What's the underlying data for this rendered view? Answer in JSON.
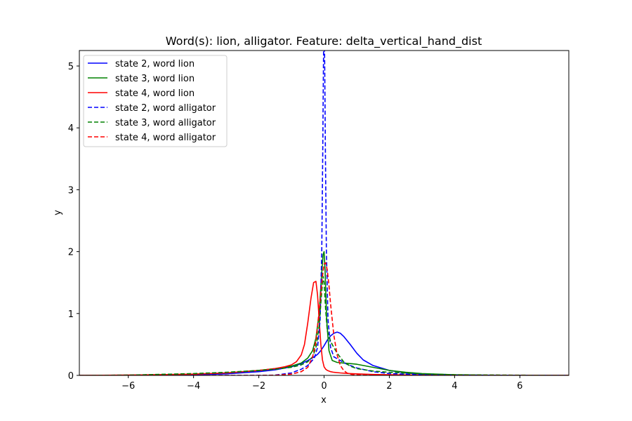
{
  "chart_data": {
    "type": "line",
    "title": "Word(s): lion, alligator. Feature: delta_vertical_hand_dist",
    "xlabel": "x",
    "ylabel": "y",
    "xlim": [
      -7.5,
      7.5
    ],
    "ylim": [
      0,
      5.25
    ],
    "xticks": [
      -6,
      -4,
      -2,
      0,
      2,
      4,
      6
    ],
    "yticks": [
      0,
      1,
      2,
      3,
      4,
      5
    ],
    "grid": false,
    "legend_position": "top-left",
    "series": [
      {
        "name": "state 2, word lion",
        "color": "#0000ff",
        "style": "solid",
        "x": [
          -7.5,
          -6,
          -4,
          -3,
          -2,
          -1.5,
          -1,
          -0.7,
          -0.5,
          -0.3,
          -0.2,
          -0.1,
          0,
          0.1,
          0.2,
          0.3,
          0.4,
          0.5,
          0.6,
          0.8,
          1,
          1.2,
          1.5,
          2,
          2.5,
          3,
          4,
          5,
          6,
          7.5
        ],
        "y": [
          0,
          0.002,
          0.01,
          0.025,
          0.06,
          0.09,
          0.14,
          0.19,
          0.24,
          0.3,
          0.34,
          0.4,
          0.48,
          0.57,
          0.64,
          0.68,
          0.7,
          0.68,
          0.63,
          0.5,
          0.36,
          0.25,
          0.16,
          0.08,
          0.04,
          0.02,
          0.006,
          0.002,
          0.001,
          0
        ]
      },
      {
        "name": "state 3, word lion",
        "color": "#008000",
        "style": "solid",
        "x": [
          -7.5,
          -6,
          -4,
          -3,
          -2,
          -1.5,
          -1,
          -0.7,
          -0.5,
          -0.35,
          -0.25,
          -0.15,
          -0.08,
          -0.03,
          0,
          0.03,
          0.08,
          0.15,
          0.25,
          0.4,
          0.6,
          0.8,
          1,
          1.2,
          1.5,
          2,
          2.5,
          3,
          4,
          5,
          6,
          7.5
        ],
        "y": [
          0,
          0.003,
          0.02,
          0.04,
          0.08,
          0.11,
          0.15,
          0.2,
          0.28,
          0.4,
          0.6,
          1.0,
          1.6,
          1.95,
          2.0,
          1.7,
          0.9,
          0.4,
          0.24,
          0.21,
          0.2,
          0.19,
          0.18,
          0.16,
          0.13,
          0.08,
          0.05,
          0.03,
          0.01,
          0.003,
          0.001,
          0
        ]
      },
      {
        "name": "state 4, word lion",
        "color": "#ff0000",
        "style": "solid",
        "x": [
          -7.5,
          -6,
          -4,
          -3,
          -2,
          -1.5,
          -1.2,
          -1,
          -0.85,
          -0.7,
          -0.6,
          -0.5,
          -0.4,
          -0.32,
          -0.25,
          -0.2,
          -0.15,
          -0.1,
          -0.05,
          0,
          0.05,
          0.1,
          0.2,
          0.3,
          0.5,
          0.8,
          1,
          1.5,
          2,
          3,
          4,
          5,
          6,
          7.5
        ],
        "y": [
          0,
          0.004,
          0.02,
          0.04,
          0.08,
          0.11,
          0.14,
          0.17,
          0.22,
          0.33,
          0.5,
          0.85,
          1.25,
          1.5,
          1.52,
          1.3,
          0.9,
          0.5,
          0.25,
          0.14,
          0.1,
          0.08,
          0.06,
          0.05,
          0.04,
          0.03,
          0.025,
          0.015,
          0.01,
          0.005,
          0.002,
          0.001,
          0,
          0
        ]
      },
      {
        "name": "state 2, word alligator",
        "color": "#0000ff",
        "style": "dashed",
        "x": [
          -7.5,
          -4,
          -2,
          -1.5,
          -1,
          -0.7,
          -0.5,
          -0.3,
          -0.2,
          -0.12,
          -0.07,
          -0.04,
          -0.02,
          0,
          0.02,
          0.04,
          0.07,
          0.12,
          0.2,
          0.3,
          0.5,
          0.7,
          1,
          1.5,
          2,
          3,
          4,
          6,
          7.5
        ],
        "y": [
          0,
          0,
          0,
          0.005,
          0.04,
          0.1,
          0.16,
          0.28,
          0.45,
          0.9,
          2.0,
          3.6,
          5.0,
          6.0,
          5.0,
          3.6,
          2.0,
          0.9,
          0.45,
          0.3,
          0.24,
          0.18,
          0.12,
          0.06,
          0.03,
          0.01,
          0.003,
          0,
          0
        ]
      },
      {
        "name": "state 3, word alligator",
        "color": "#008000",
        "style": "dashed",
        "x": [
          -7.5,
          -6,
          -4,
          -3,
          -2,
          -1.5,
          -1,
          -0.7,
          -0.5,
          -0.35,
          -0.25,
          -0.15,
          -0.08,
          -0.03,
          0,
          0.05,
          0.1,
          0.2,
          0.3,
          0.4,
          0.6,
          0.8,
          1,
          1.5,
          2,
          3,
          4,
          6,
          7.5
        ],
        "y": [
          0,
          0.005,
          0.03,
          0.05,
          0.08,
          0.1,
          0.13,
          0.17,
          0.22,
          0.3,
          0.45,
          0.8,
          1.3,
          1.6,
          1.5,
          1.05,
          0.72,
          0.55,
          0.45,
          0.36,
          0.22,
          0.15,
          0.11,
          0.07,
          0.05,
          0.025,
          0.01,
          0.003,
          0
        ]
      },
      {
        "name": "state 4, word alligator",
        "color": "#ff0000",
        "style": "dashed",
        "x": [
          -7.5,
          -4,
          -2,
          -1.5,
          -1,
          -0.7,
          -0.5,
          -0.35,
          -0.25,
          -0.15,
          -0.05,
          0,
          0.05,
          0.1,
          0.15,
          0.2,
          0.3,
          0.4,
          0.5,
          0.6,
          0.7,
          0.8,
          1,
          1.5,
          2,
          3,
          7.5
        ],
        "y": [
          0,
          0,
          0,
          0.002,
          0.02,
          0.06,
          0.13,
          0.3,
          0.55,
          1.05,
          1.6,
          1.8,
          1.82,
          1.7,
          1.45,
          1.15,
          0.65,
          0.33,
          0.16,
          0.08,
          0.04,
          0.02,
          0.008,
          0.002,
          0,
          0,
          0
        ]
      }
    ]
  }
}
